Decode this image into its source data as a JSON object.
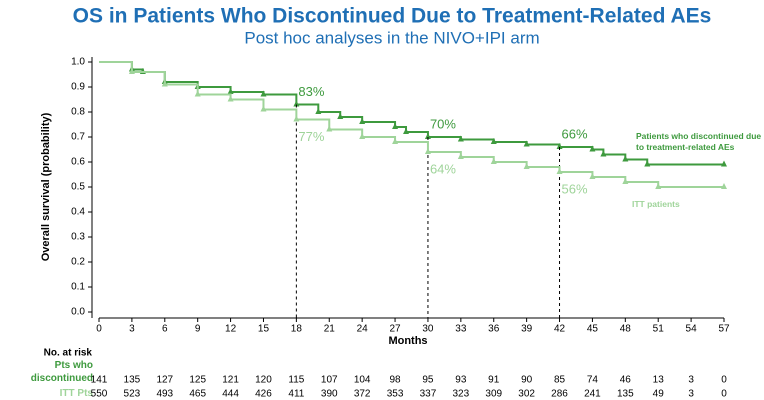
{
  "chart_data": {
    "type": "line",
    "title": "OS in Patients Who Discontinued Due to Treatment-Related AEs",
    "subtitle": "Post hoc analyses in the NIVO+IPI arm",
    "x_label": "Months",
    "y_label": "Overall survival (probability)",
    "xlim": [
      0,
      57
    ],
    "xticks": [
      0,
      3,
      6,
      9,
      12,
      15,
      18,
      21,
      24,
      27,
      30,
      33,
      36,
      39,
      42,
      45,
      48,
      51,
      54,
      57
    ],
    "ylim": [
      0,
      1
    ],
    "yticks": [
      {
        "value": 0,
        "label": "0.0"
      },
      0.1,
      0.2,
      0.3,
      0.4,
      0.5,
      0.6,
      0.7,
      0.8,
      0.9,
      {
        "value": 1,
        "label": "1.0"
      }
    ],
    "series": [
      {
        "name": "Patients who discontinued due to treatment-related AEs",
        "color": "#3e9a3e",
        "x": [
          0,
          3,
          4,
          6,
          9,
          12,
          15,
          18,
          20,
          22,
          24,
          27,
          28,
          30,
          33,
          36,
          39,
          42,
          45,
          46,
          48,
          50,
          57
        ],
        "values": [
          1.0,
          0.97,
          0.96,
          0.92,
          0.9,
          0.88,
          0.87,
          0.83,
          0.8,
          0.78,
          0.76,
          0.74,
          0.72,
          0.7,
          0.69,
          0.68,
          0.67,
          0.66,
          0.65,
          0.63,
          0.61,
          0.59,
          0.59
        ],
        "annotations": [
          {
            "x": 18,
            "y": 0.83,
            "label": "83%"
          },
          {
            "x": 30,
            "y": 0.7,
            "label": "70%"
          },
          {
            "x": 42,
            "y": 0.66,
            "label": "66%"
          }
        ]
      },
      {
        "name": "ITT patients",
        "color": "#9fd49a",
        "x": [
          0,
          3,
          6,
          9,
          12,
          15,
          18,
          21,
          24,
          27,
          30,
          33,
          36,
          39,
          42,
          45,
          48,
          51,
          57
        ],
        "values": [
          1.0,
          0.96,
          0.91,
          0.87,
          0.85,
          0.81,
          0.77,
          0.73,
          0.7,
          0.68,
          0.64,
          0.62,
          0.6,
          0.58,
          0.56,
          0.54,
          0.52,
          0.5,
          0.5
        ],
        "annotations": [
          {
            "x": 18,
            "y": 0.77,
            "label": "77%"
          },
          {
            "x": 30,
            "y": 0.64,
            "label": "64%"
          },
          {
            "x": 42,
            "y": 0.56,
            "label": "56%"
          }
        ]
      }
    ],
    "risk_table": {
      "title": "No. at risk",
      "rows": [
        {
          "label": "Pts who discontinued",
          "values": [
            141,
            135,
            127,
            125,
            121,
            120,
            115,
            107,
            104,
            98,
            95,
            93,
            91,
            90,
            85,
            74,
            46,
            13,
            3,
            0
          ]
        },
        {
          "label": "ITT Pts",
          "values": [
            550,
            523,
            493,
            465,
            444,
            426,
            411,
            390,
            372,
            353,
            337,
            323,
            309,
            302,
            286,
            241,
            135,
            49,
            3,
            0
          ]
        }
      ]
    }
  }
}
